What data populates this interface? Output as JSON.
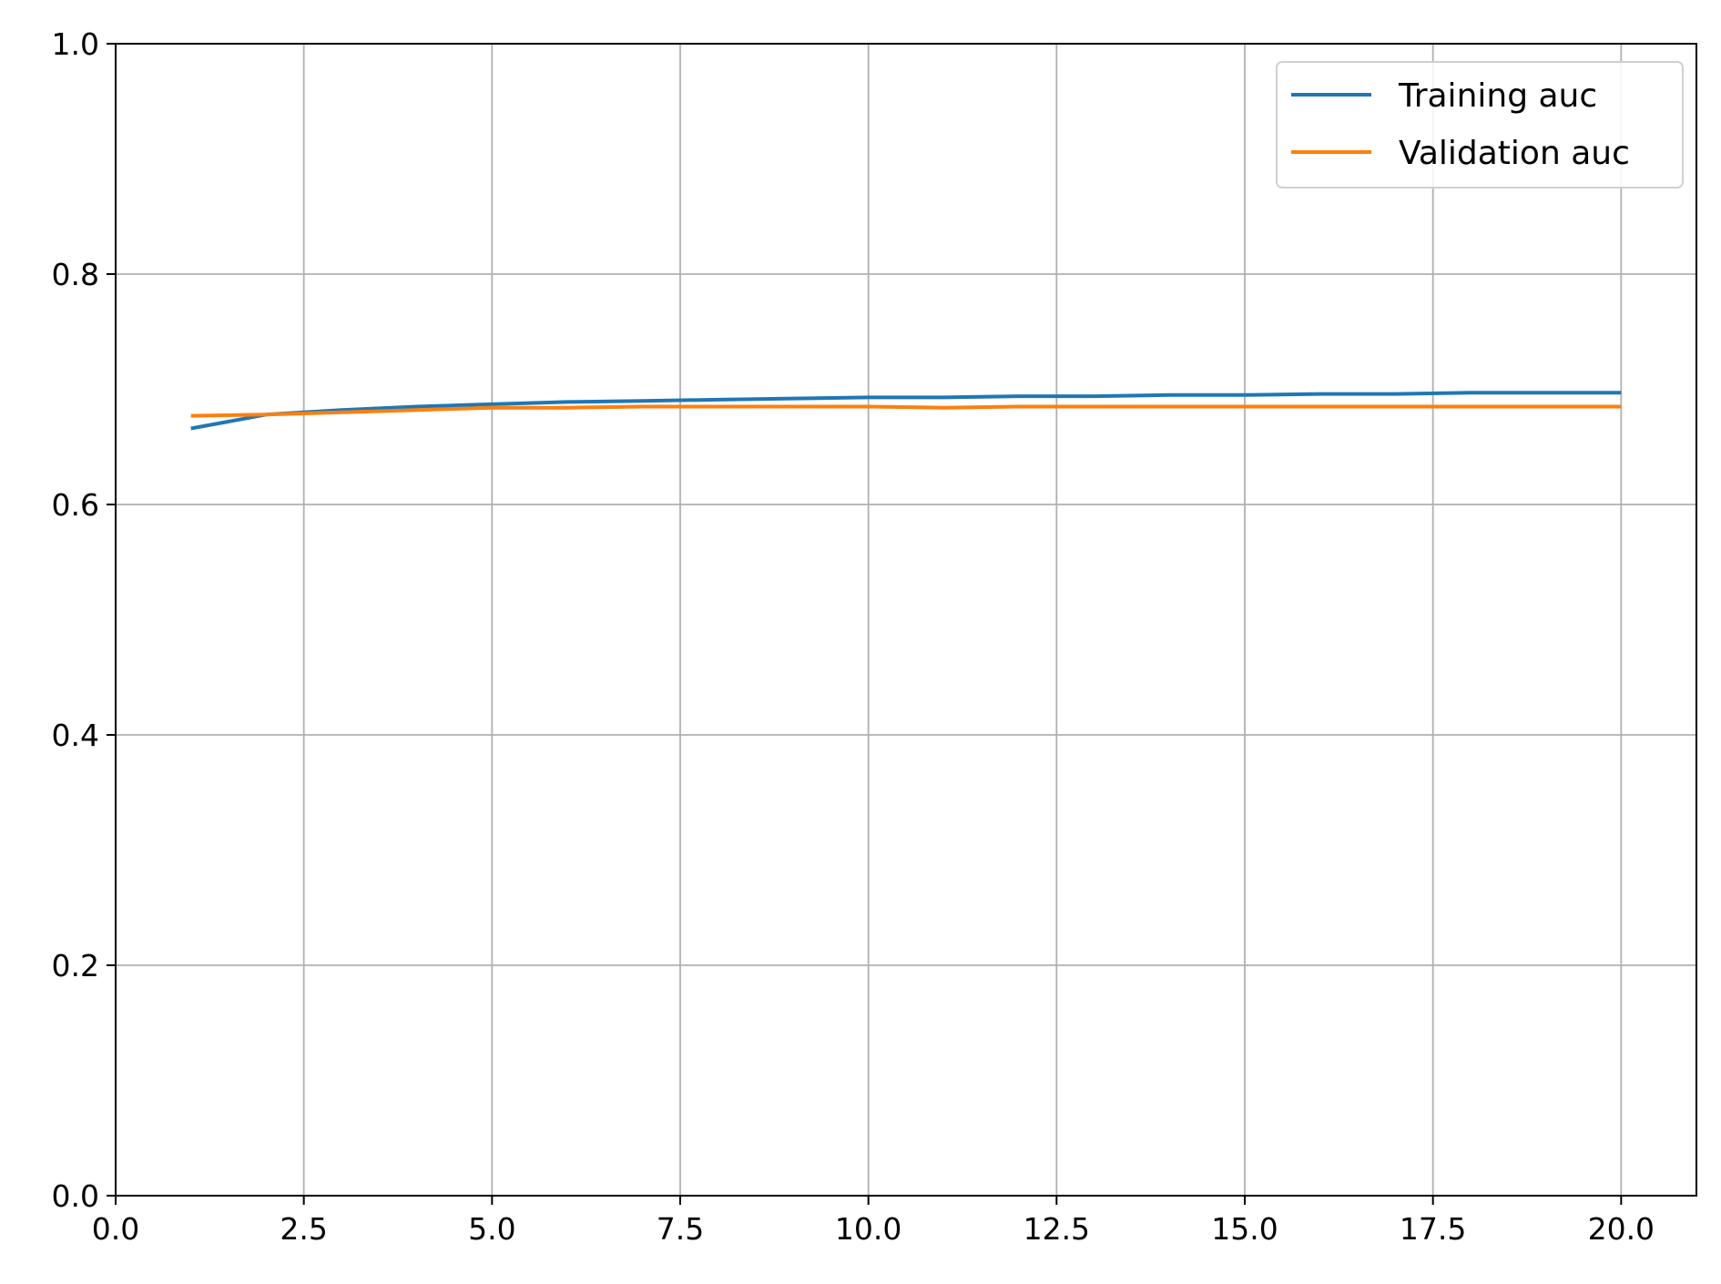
{
  "chart_data": {
    "type": "line",
    "title": "",
    "xlabel": "",
    "ylabel": "",
    "xlim": [
      0,
      21
    ],
    "ylim": [
      0,
      1.0
    ],
    "grid": true,
    "legend_position": "top-right",
    "x_ticks": [
      "0.0",
      "2.5",
      "5.0",
      "7.5",
      "10.0",
      "12.5",
      "15.0",
      "17.5",
      "20.0"
    ],
    "y_ticks": [
      "0.0",
      "0.2",
      "0.4",
      "0.6",
      "0.8",
      "1.0"
    ],
    "x": [
      1,
      2,
      3,
      4,
      5,
      6,
      7,
      8,
      9,
      10,
      11,
      12,
      13,
      14,
      15,
      16,
      17,
      18,
      19,
      20
    ],
    "series": [
      {
        "name": "Training auc",
        "color": "#1f77b4",
        "values": [
          0.666,
          0.678,
          0.682,
          0.685,
          0.687,
          0.689,
          0.69,
          0.691,
          0.692,
          0.693,
          0.693,
          0.694,
          0.694,
          0.695,
          0.695,
          0.696,
          0.696,
          0.697,
          0.697,
          0.697
        ]
      },
      {
        "name": "Validation auc",
        "color": "#ff7f0e",
        "values": [
          0.677,
          0.678,
          0.68,
          0.682,
          0.684,
          0.684,
          0.685,
          0.685,
          0.685,
          0.685,
          0.684,
          0.685,
          0.685,
          0.685,
          0.685,
          0.685,
          0.685,
          0.685,
          0.685,
          0.685
        ]
      }
    ]
  }
}
